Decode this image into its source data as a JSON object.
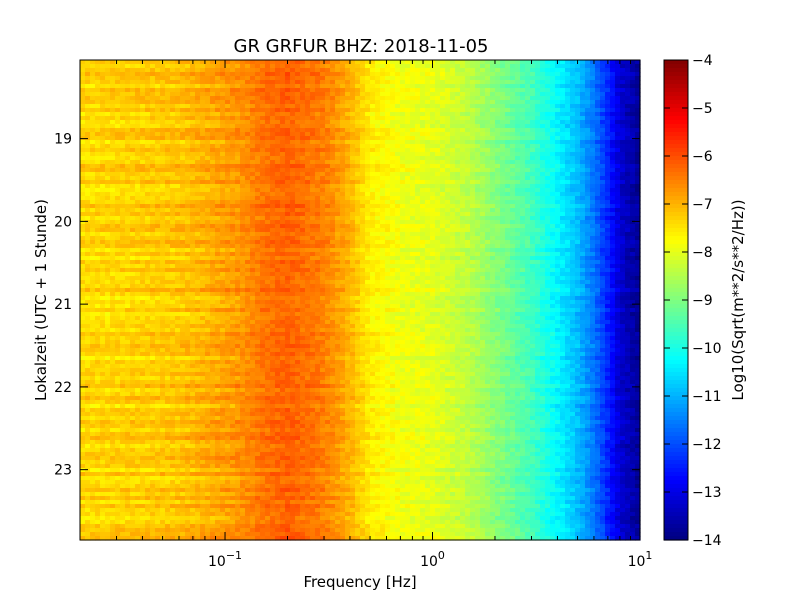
{
  "chart_data": {
    "type": "heatmap",
    "title": "GR GRFUR BHZ: 2018-11-05",
    "xlabel": "Frequency [Hz]",
    "ylabel": "Lokalzeit (UTC + 1 Stunde)",
    "colorbar_label": "Log10(Sqrt(m**2/s**2/Hz))",
    "x_scale": "log",
    "xlim": [
      0.02,
      10
    ],
    "x_ticks": [
      {
        "value": 0.1,
        "base": "10",
        "exp": "−1"
      },
      {
        "value": 1,
        "base": "10",
        "exp": "0"
      },
      {
        "value": 10,
        "base": "10",
        "exp": "1"
      }
    ],
    "ylim": [
      18.05,
      23.85
    ],
    "y_inverted": true,
    "y_ticks": [
      "19",
      "20",
      "21",
      "22",
      "23"
    ],
    "color_range": [
      -14,
      -4
    ],
    "colorbar_ticks": [
      "−4",
      "−5",
      "−6",
      "−7",
      "−8",
      "−9",
      "−10",
      "−11",
      "−12",
      "−13",
      "−14"
    ],
    "colormap": "jet",
    "frequency_profile": [
      {
        "freq": 0.02,
        "value": -7.4
      },
      {
        "freq": 0.06,
        "value": -7.2
      },
      {
        "freq": 0.12,
        "value": -6.7
      },
      {
        "freq": 0.15,
        "value": -6.4
      },
      {
        "freq": 0.2,
        "value": -6.2
      },
      {
        "freq": 0.3,
        "value": -6.5
      },
      {
        "freq": 0.4,
        "value": -7.0
      },
      {
        "freq": 0.5,
        "value": -7.6
      },
      {
        "freq": 0.7,
        "value": -7.9
      },
      {
        "freq": 1.0,
        "value": -8.0
      },
      {
        "freq": 1.5,
        "value": -8.4
      },
      {
        "freq": 2.0,
        "value": -8.9
      },
      {
        "freq": 3.0,
        "value": -9.6
      },
      {
        "freq": 4.0,
        "value": -10.3
      },
      {
        "freq": 5.0,
        "value": -10.9
      },
      {
        "freq": 6.0,
        "value": -11.6
      },
      {
        "freq": 7.0,
        "value": -12.4
      },
      {
        "freq": 8.0,
        "value": -13.2
      },
      {
        "freq": 10.0,
        "value": -13.8
      }
    ],
    "grid": false
  }
}
